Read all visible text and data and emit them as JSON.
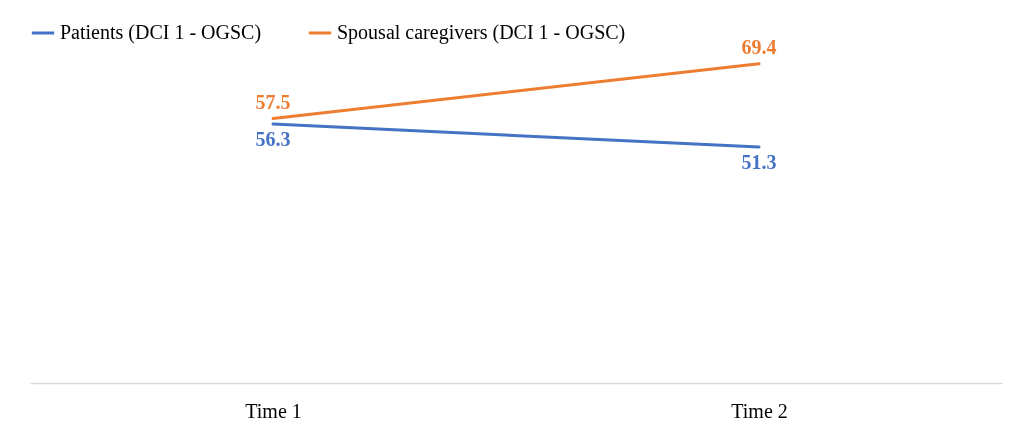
{
  "chart_data": {
    "type": "line",
    "categories": [
      "Time 1",
      "Time 2"
    ],
    "series": [
      {
        "name": "Patients (DCI 1 - OGSC)",
        "color": "#4472c4",
        "values": [
          56.3,
          51.3
        ]
      },
      {
        "name": "Spousal caregivers (DCI 1 - OGSC)",
        "color": "#ed7d31",
        "values": [
          57.5,
          69.4
        ]
      }
    ],
    "tick_labels": "x",
    "data_labels": true,
    "legend": "top",
    "grid": false,
    "marker": "none",
    "line_style": "solid"
  }
}
